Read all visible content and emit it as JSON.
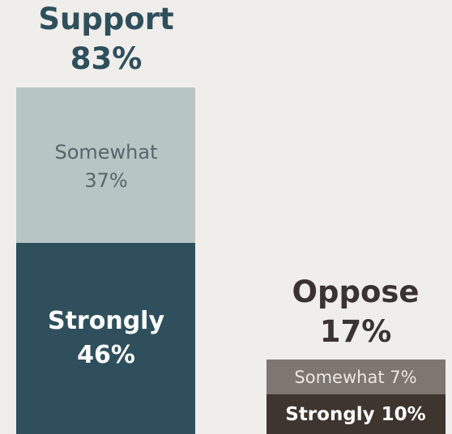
{
  "chart_data": {
    "type": "bar",
    "stacked": true,
    "categories": [
      "Support",
      "Oppose"
    ],
    "totals": [
      {
        "label": "Support",
        "value_label": "83%",
        "value": 83
      },
      {
        "label": "Oppose",
        "value_label": "17%",
        "value": 17
      }
    ],
    "series": [
      {
        "name": "Strongly",
        "values": [
          46,
          10
        ],
        "labels": [
          "Strongly",
          "Strongly 10%"
        ],
        "value_labels": [
          "46%",
          ""
        ]
      },
      {
        "name": "Somewhat",
        "values": [
          37,
          7
        ],
        "labels": [
          "Somewhat",
          "Somewhat 7%"
        ],
        "value_labels": [
          "37%",
          ""
        ]
      }
    ],
    "colors": {
      "support_strongly": "#2f4f5c",
      "support_somewhat": "#b7c5c4",
      "oppose_strongly": "#3e352f",
      "oppose_somewhat": "#7e7670",
      "title_support": "#2f4f5c",
      "title_oppose": "#3a3330",
      "text_light": "#ffffff",
      "text_somewhat": "#56666b",
      "text_oppose_somewhat": "#ebe8e5"
    }
  }
}
